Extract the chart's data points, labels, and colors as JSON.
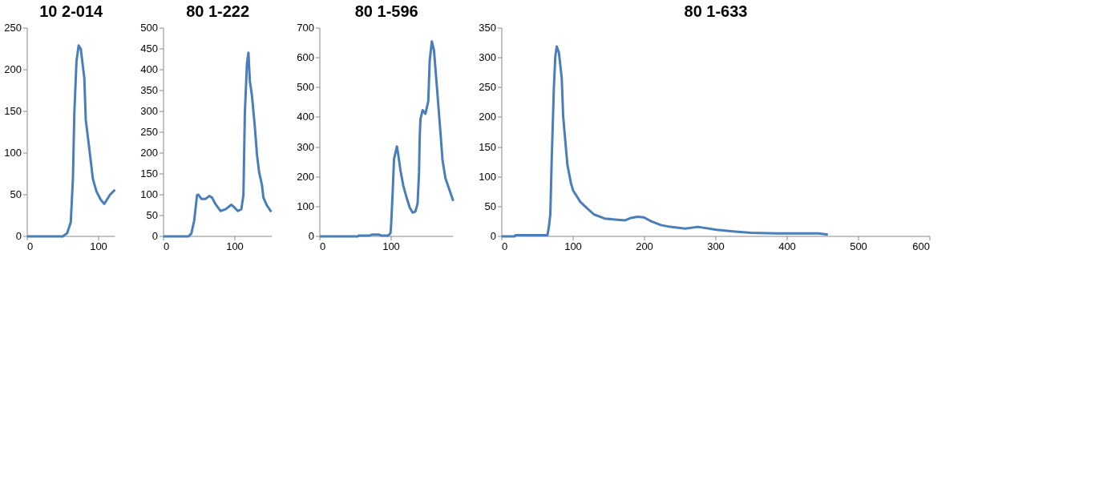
{
  "chart_data": [
    {
      "type": "line",
      "title": "10 2-014",
      "color": "#4a7ebb",
      "xlim": [
        0,
        123
      ],
      "xticks": [
        0,
        100
      ],
      "ylim": [
        0,
        250
      ],
      "yticks": [
        0,
        50,
        100,
        150,
        200,
        250
      ],
      "x": [
        0,
        50,
        56,
        61,
        64,
        66,
        69,
        72,
        75,
        80,
        82,
        88,
        92,
        97,
        103,
        108,
        116,
        123
      ],
      "values": [
        0,
        0,
        4,
        17,
        69,
        148,
        210,
        229,
        225,
        190,
        140,
        98,
        69,
        54,
        44,
        39,
        50,
        56
      ]
    },
    {
      "type": "line",
      "title": "80 1-222",
      "color": "#4a7ebb",
      "xlim": [
        0,
        152
      ],
      "xticks": [
        0,
        100
      ],
      "ylim": [
        0,
        500
      ],
      "yticks": [
        0,
        50,
        100,
        150,
        200,
        250,
        300,
        350,
        400,
        450,
        500
      ],
      "x": [
        0,
        35,
        39,
        43,
        47,
        49,
        53,
        59,
        64,
        68,
        73,
        80,
        87,
        95,
        99,
        104,
        109,
        112,
        114,
        117,
        119,
        121,
        124,
        128,
        131,
        134,
        138,
        140,
        145,
        151
      ],
      "values": [
        0,
        0,
        7,
        38,
        99,
        100,
        90,
        90,
        97,
        93,
        77,
        61,
        65,
        76,
        70,
        61,
        65,
        99,
        297,
        416,
        441,
        373,
        337,
        263,
        196,
        154,
        123,
        93,
        74,
        59
      ]
    },
    {
      "type": "line",
      "title": "80 1-596",
      "color": "#4a7ebb",
      "xlim": [
        0,
        187
      ],
      "xticks": [
        0,
        100
      ],
      "ylim": [
        0,
        700
      ],
      "yticks": [
        0,
        100,
        200,
        300,
        400,
        500,
        600,
        700
      ],
      "x": [
        0,
        53,
        55,
        70,
        73,
        83,
        86,
        96,
        99,
        100,
        102,
        104,
        108,
        110,
        113,
        117,
        122,
        126,
        130,
        134,
        137,
        139,
        140,
        141,
        144,
        148,
        152,
        154,
        157,
        160,
        164,
        169,
        172,
        176,
        181,
        187
      ],
      "values": [
        0,
        0,
        3,
        3,
        6,
        6,
        3,
        3,
        11,
        41,
        144,
        260,
        302,
        273,
        222,
        170,
        127,
        97,
        80,
        84,
        110,
        213,
        333,
        393,
        424,
        412,
        454,
        591,
        655,
        625,
        505,
        351,
        256,
        196,
        161,
        119
      ]
    },
    {
      "type": "line",
      "title": "80 1-633",
      "color": "#4a7ebb",
      "xlim": [
        0,
        600
      ],
      "xticks": [
        0,
        100,
        200,
        300,
        400,
        500,
        600
      ],
      "ylim": [
        0,
        350
      ],
      "yticks": [
        0,
        50,
        100,
        150,
        200,
        250,
        300,
        350
      ],
      "x": [
        0,
        18,
        19,
        64,
        66,
        68,
        70,
        73,
        75,
        77,
        80,
        84,
        86,
        89,
        92,
        97,
        100,
        110,
        118,
        129,
        144,
        162,
        173,
        181,
        190,
        199,
        210,
        223,
        236,
        257,
        275,
        301,
        327,
        349,
        384,
        444,
        457
      ],
      "values": [
        0,
        0,
        2,
        2,
        16,
        37,
        131,
        250,
        302,
        319,
        309,
        266,
        202,
        160,
        120,
        89,
        77,
        58,
        49,
        37,
        30,
        28,
        27,
        31,
        33,
        32,
        25,
        19,
        16,
        13,
        16,
        11,
        8,
        6,
        5,
        5,
        3
      ]
    }
  ]
}
